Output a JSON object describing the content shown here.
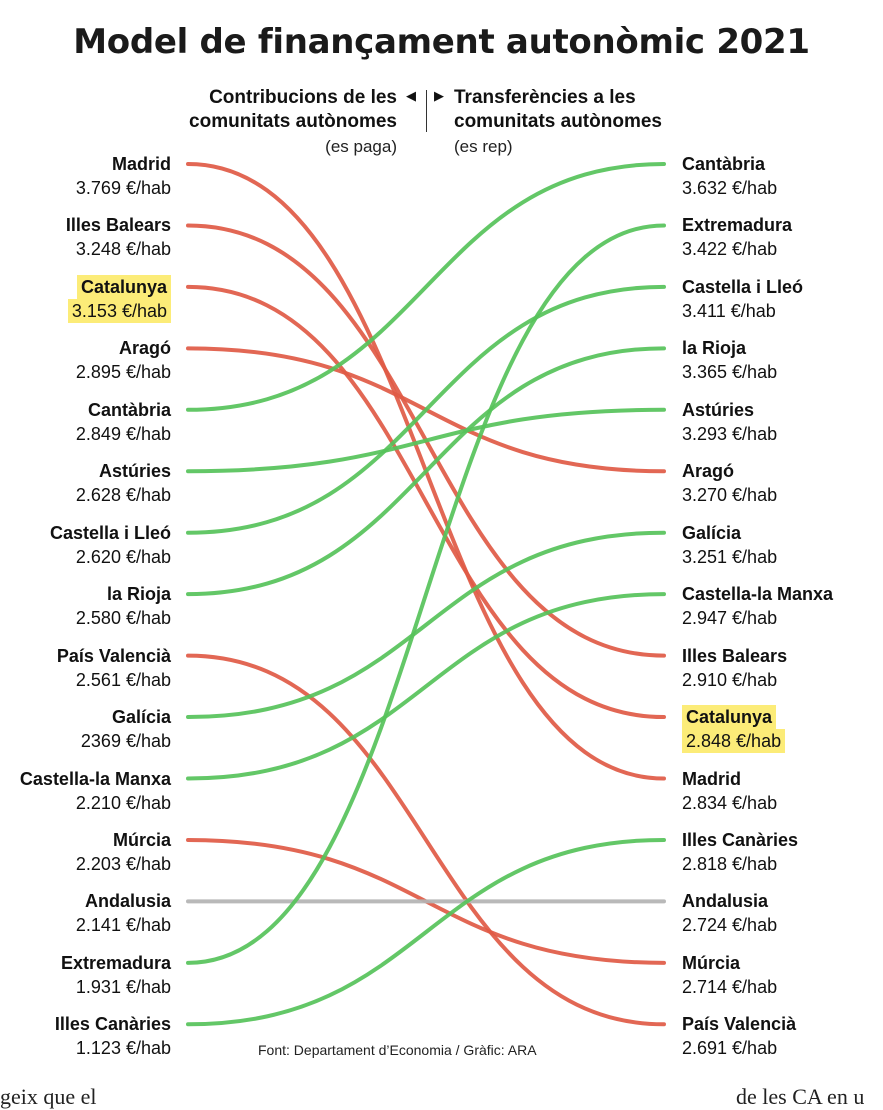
{
  "title": "Model de finançament autonòmic 2021",
  "header": {
    "left_line1": "Contribucions de les",
    "left_line2": "comunitats autònomes",
    "left_sub": "(es paga)",
    "right_line1": "Transferències a les",
    "right_line2": "comunitats autònomes",
    "right_sub": "(es rep)",
    "arrow_left": "◀",
    "arrow_right": "▶"
  },
  "colors": {
    "pays_more": "#e05a45",
    "receives_more": "#56c25a",
    "equal": "#b3b3b3",
    "highlight": "#fcec78"
  },
  "chart_data": {
    "type": "slope",
    "unit": "€/hab",
    "left": [
      {
        "name": "Madrid",
        "value": "3.769 €/hab"
      },
      {
        "name": "Illes Balears",
        "value": "3.248 €/hab"
      },
      {
        "name": "Catalunya",
        "value": "3.153 €/hab",
        "highlight": true
      },
      {
        "name": "Aragó",
        "value": "2.895 €/hab"
      },
      {
        "name": "Cantàbria",
        "value": "2.849 €/hab"
      },
      {
        "name": "Astúries",
        "value": "2.628 €/hab"
      },
      {
        "name": "Castella i Lleó",
        "value": "2.620 €/hab"
      },
      {
        "name": "la Rioja",
        "value": "2.580 €/hab"
      },
      {
        "name": "País Valencià",
        "value": "2.561 €/hab"
      },
      {
        "name": "Galícia",
        "value": "2369 €/hab"
      },
      {
        "name": "Castella-la Manxa",
        "value": "2.210 €/hab"
      },
      {
        "name": "Múrcia",
        "value": "2.203 €/hab"
      },
      {
        "name": "Andalusia",
        "value": "2.141 €/hab"
      },
      {
        "name": "Extremadura",
        "value": "1.931 €/hab"
      },
      {
        "name": "Illes Canàries",
        "value": "1.123 €/hab"
      }
    ],
    "right": [
      {
        "name": "Cantàbria",
        "value": "3.632 €/hab"
      },
      {
        "name": "Extremadura",
        "value": "3.422 €/hab"
      },
      {
        "name": "Castella i Lleó",
        "value": "3.411 €/hab"
      },
      {
        "name": "la Rioja",
        "value": "3.365 €/hab"
      },
      {
        "name": "Astúries",
        "value": "3.293 €/hab"
      },
      {
        "name": "Aragó",
        "value": "3.270 €/hab"
      },
      {
        "name": "Galícia",
        "value": "3.251 €/hab"
      },
      {
        "name": "Castella-la Manxa",
        "value": "2.947 €/hab"
      },
      {
        "name": "Illes Balears",
        "value": "2.910 €/hab"
      },
      {
        "name": "Catalunya",
        "value": "2.848 €/hab",
        "highlight": true
      },
      {
        "name": "Madrid",
        "value": "2.834 €/hab"
      },
      {
        "name": "Illes Canàries",
        "value": "2.818 €/hab"
      },
      {
        "name": "Andalusia",
        "value": "2.724 €/hab"
      },
      {
        "name": "Múrcia",
        "value": "2.714 €/hab"
      },
      {
        "name": "País Valencià",
        "value": "2.691 €/hab"
      }
    ],
    "source": "Font: Departament d’Economia / Gràfic: ARA"
  },
  "footer": {
    "left_text": "geix que el",
    "right_text": "de les CA en u"
  }
}
